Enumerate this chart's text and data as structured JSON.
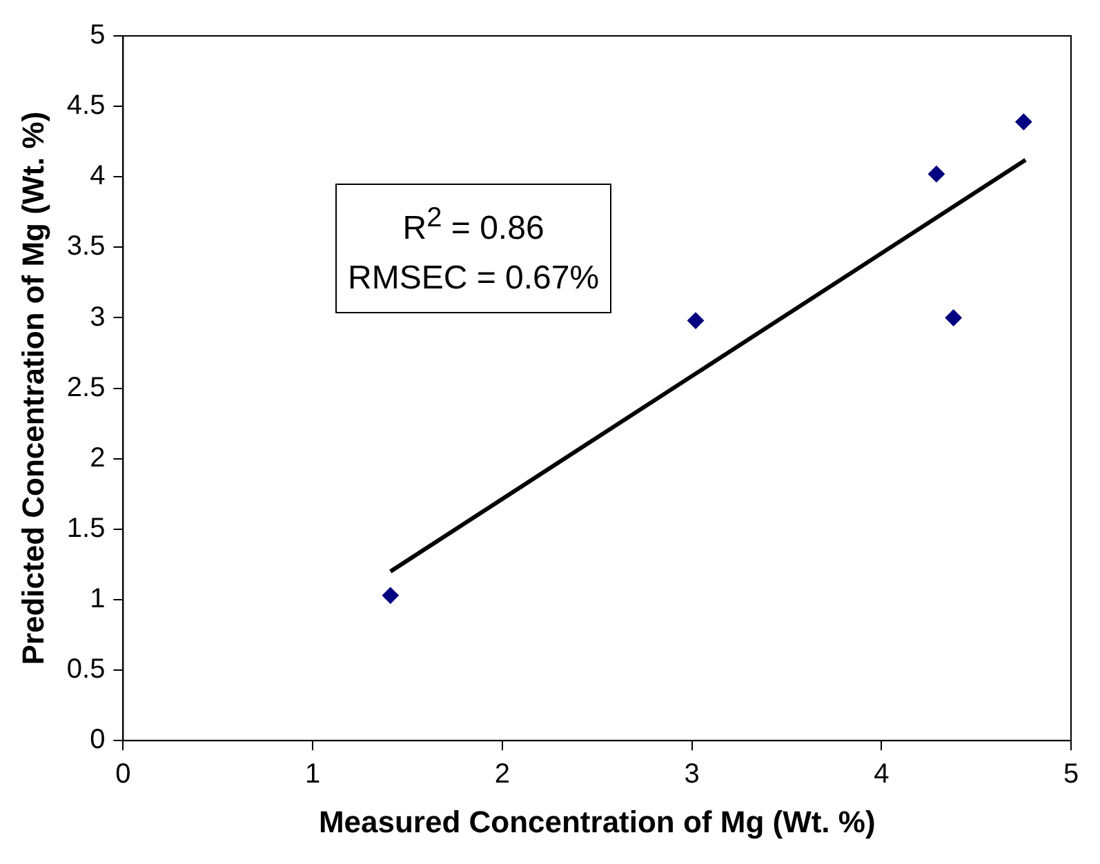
{
  "chart_data": {
    "type": "scatter",
    "xlabel": "Measured Concentration of Mg (Wt. %)",
    "ylabel": "Predicted Concentration of Mg (Wt. %)",
    "xlim": [
      0,
      5
    ],
    "xticks": [
      0,
      1,
      2,
      3,
      4,
      5
    ],
    "ylim": [
      0,
      5
    ],
    "yticks": [
      0,
      0.5,
      1,
      1.5,
      2,
      2.5,
      3,
      3.5,
      4,
      4.5,
      5
    ],
    "grid": false,
    "legend": false,
    "marker": "diamond",
    "series": [
      {
        "type": "scatter",
        "color": "#000080",
        "x": [
          1.41,
          3.02,
          4.29,
          4.38,
          4.75
        ],
        "values": [
          1.03,
          2.98,
          4.02,
          3.0,
          4.39
        ]
      },
      {
        "type": "line",
        "color": "#000000",
        "marker": "none",
        "line_style": "solid",
        "x": [
          1.41,
          4.76
        ],
        "values": [
          1.2,
          4.12
        ]
      }
    ],
    "annotations": [
      "R$^{2}$ = 0.86",
      "RMSEC = 0.67%"
    ]
  }
}
